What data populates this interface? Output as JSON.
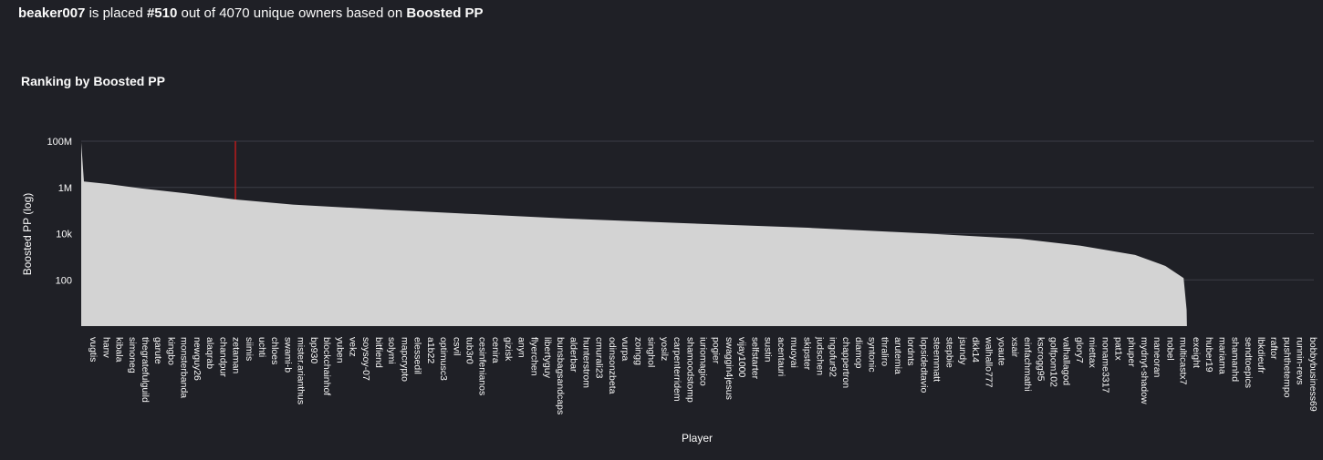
{
  "headline": {
    "player": "beaker007",
    "text1": " is placed ",
    "rank": "#510",
    "text2": " out of 4070 unique owners based on ",
    "metric": "Boosted PP"
  },
  "colors": {
    "background": "#1f2026",
    "area": "#d3d3d3",
    "highlight": "#d11a1a",
    "grid": "#3b3d45",
    "text": "#fafafa"
  },
  "chart_data": {
    "type": "area",
    "title": "Ranking by Boosted PP",
    "xlabel": "Player",
    "ylabel": "Boosted PP (log)",
    "y_scale": "log",
    "ylim": [
      1,
      100000000
    ],
    "y_ticks": [
      {
        "value": 100,
        "label": "100"
      },
      {
        "value": 10000,
        "label": "10k"
      },
      {
        "value": 1000000,
        "label": "1M"
      },
      {
        "value": 100000000,
        "label": "100M"
      }
    ],
    "x_tick_labels": [
      "vugtis",
      "hanv",
      "kibala",
      "simoneg",
      "thegratefulguild",
      "garute",
      "kingbo",
      "monsterbanda",
      "newguy26",
      "alaqrab",
      "chandpur",
      "zetaman",
      "siimis",
      "uchti",
      "chloes",
      "swami-b",
      "mister.arianthus",
      "bp930",
      "blockchainhof",
      "yuben",
      "vekz",
      "soysoy-07",
      "bitfiend",
      "solymi",
      "mapcrypto",
      "elessedil",
      "a1b22",
      "optimusc3",
      "csvil",
      "tub3r0",
      "cesinfenianos",
      "cenira",
      "gizisk",
      "anyn",
      "flyerchen",
      "libertyguy",
      "bunsbagsandcaps",
      "alderbar",
      "hunterstrom",
      "cmurali23",
      "odinsonzbeta",
      "vurpa",
      "zoingg",
      "singhol",
      "yosilz",
      "carpenterridem",
      "shamoodstomp",
      "iuriomagico",
      "pogier",
      "swaggin4jesus",
      "vijay1000",
      "selfstarter",
      "sustin",
      "acentauri",
      "muoyai",
      "skipster",
      "judschen",
      "ingofur92",
      "chappertron",
      "diamop",
      "syntonic",
      "thraliro",
      "arutemia",
      "lordnts",
      "lopsidedtavio",
      "steemmatt",
      "stepbie",
      "jsundy",
      "dkk14",
      "walhallo777",
      "yoaute",
      "xsair",
      "einfachmathi",
      "kscrogg95",
      "golfpom102",
      "valhallagod",
      "glory7",
      "miettax",
      "noname3317",
      "pat1x",
      "phuper",
      "mydnyt-shadow",
      "naneoran",
      "nobel",
      "multicastx7",
      "exeight",
      "huber19",
      "mariama",
      "shamanhd",
      "sendtoepics",
      "lbkdieufr",
      "raftor",
      "pushthetempo",
      "runnin-revs",
      "bobbybusiness69"
    ],
    "curve": [
      {
        "rank": 1,
        "pp": 90000000
      },
      {
        "rank": 10,
        "pp": 1800000
      },
      {
        "rank": 90,
        "pp": 1400000
      },
      {
        "rank": 200,
        "pp": 900000
      },
      {
        "rank": 350,
        "pp": 550000
      },
      {
        "rank": 510,
        "pp": 300000
      },
      {
        "rank": 700,
        "pp": 180000
      },
      {
        "rank": 1000,
        "pp": 110000
      },
      {
        "rank": 1300,
        "pp": 70000
      },
      {
        "rank": 1600,
        "pp": 45000
      },
      {
        "rank": 2000,
        "pp": 28000
      },
      {
        "rank": 2400,
        "pp": 18000
      },
      {
        "rank": 2800,
        "pp": 10000
      },
      {
        "rank": 3100,
        "pp": 6000
      },
      {
        "rank": 3300,
        "pp": 3000
      },
      {
        "rank": 3480,
        "pp": 1200
      },
      {
        "rank": 3580,
        "pp": 400
      },
      {
        "rank": 3640,
        "pp": 120
      },
      {
        "rank": 3650,
        "pp": 5
      },
      {
        "rank": 3651,
        "pp": 1
      }
    ],
    "total_players": 4070,
    "highlight": {
      "player": "beaker007",
      "rank": 510
    }
  }
}
